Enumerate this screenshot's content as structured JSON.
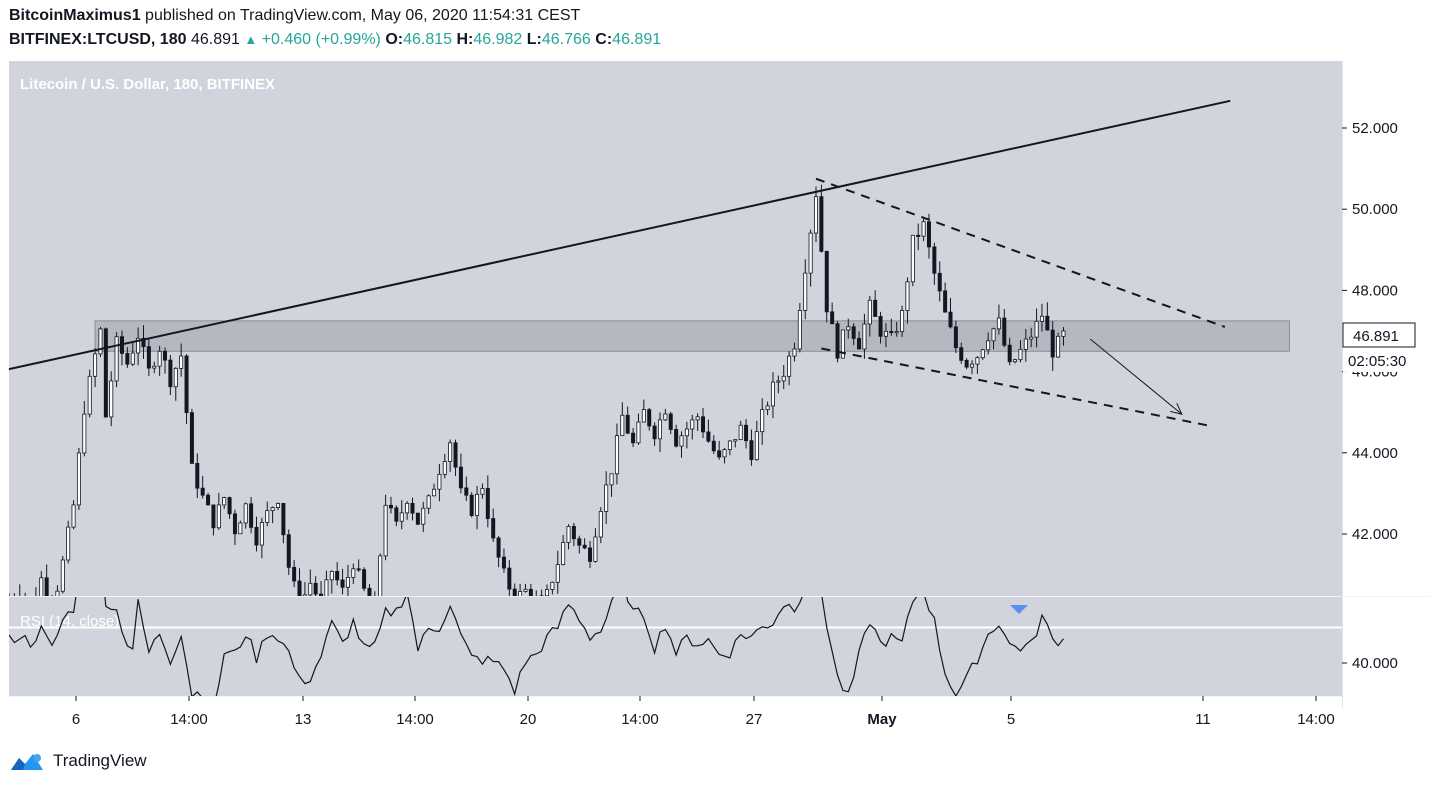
{
  "header": {
    "author": "BitcoinMaximus1",
    "published_text": "published on TradingView.com, May 06, 2020 11:54:31 CEST",
    "symbol": "BITFINEX:LTCUSD, 180",
    "last": "46.891",
    "change": "+0.460 (+0.99%)",
    "o_label": "O:",
    "o_value": "46.815",
    "h_label": "H:",
    "h_value": "46.982",
    "l_label": "L:",
    "l_value": "46.766",
    "c_label": "C:",
    "c_value": "46.891"
  },
  "footer": {
    "brand": "TradingView"
  },
  "chart_data": {
    "type": "candlestick",
    "title": "Litecoin / U.S. Dollar, 180, BITFINEX",
    "colors": {
      "background": "#d1d4dc",
      "candle": "#131722",
      "zone": "#b2b5be",
      "up": "#26a69a",
      "rsi_marker": "#5b8ff0"
    },
    "price_axis": {
      "ticks": [
        "52.000",
        "50.000",
        "48.000",
        "46.000",
        "44.000",
        "42.000",
        "40.000"
      ]
    },
    "time_axis": {
      "ticks": [
        "6",
        "14:00",
        "13",
        "14:00",
        "20",
        "14:00",
        "27",
        "May",
        "5",
        "11",
        "14:00"
      ]
    },
    "last_price_label": "46.891",
    "countdown_label": "02:05:30",
    "rsi": {
      "label": "RSI (14, close)"
    },
    "path": [
      [
        0,
        40.35
      ],
      [
        2,
        40.6
      ],
      [
        4,
        40.2
      ],
      [
        6,
        40.9
      ],
      [
        8,
        40.1
      ],
      [
        10,
        41.3
      ],
      [
        12,
        42.7
      ],
      [
        14,
        45.1
      ],
      [
        16,
        46.4
      ],
      [
        17,
        47.0
      ],
      [
        18,
        44.9
      ],
      [
        20,
        46.7
      ],
      [
        22,
        46.2
      ],
      [
        24,
        46.9
      ],
      [
        26,
        46.0
      ],
      [
        28,
        46.6
      ],
      [
        30,
        45.8
      ],
      [
        32,
        46.4
      ],
      [
        34,
        43.6
      ],
      [
        36,
        42.9
      ],
      [
        38,
        42.3
      ],
      [
        40,
        42.9
      ],
      [
        42,
        42.1
      ],
      [
        44,
        42.7
      ],
      [
        46,
        41.9
      ],
      [
        48,
        42.5
      ],
      [
        50,
        42.9
      ],
      [
        52,
        41.2
      ],
      [
        54,
        40.2
      ],
      [
        56,
        40.8
      ],
      [
        58,
        40.3
      ],
      [
        60,
        41.1
      ],
      [
        62,
        40.6
      ],
      [
        64,
        41.3
      ],
      [
        66,
        40.6
      ],
      [
        68,
        40.2
      ],
      [
        70,
        42.8
      ],
      [
        72,
        42.2
      ],
      [
        74,
        42.9
      ],
      [
        76,
        42.3
      ],
      [
        78,
        42.8
      ],
      [
        80,
        43.6
      ],
      [
        82,
        44.3
      ],
      [
        84,
        43.0
      ],
      [
        86,
        42.6
      ],
      [
        88,
        43.2
      ],
      [
        90,
        41.8
      ],
      [
        92,
        41.0
      ],
      [
        94,
        40.4
      ],
      [
        96,
        40.6
      ],
      [
        98,
        40.2
      ],
      [
        100,
        40.5
      ],
      [
        102,
        41.3
      ],
      [
        104,
        42.2
      ],
      [
        106,
        41.7
      ],
      [
        108,
        41.5
      ],
      [
        110,
        42.7
      ],
      [
        112,
        43.6
      ],
      [
        114,
        44.9
      ],
      [
        116,
        44.2
      ],
      [
        118,
        45.0
      ],
      [
        120,
        44.5
      ],
      [
        122,
        45.1
      ],
      [
        124,
        44.3
      ],
      [
        126,
        44.6
      ],
      [
        128,
        44.9
      ],
      [
        130,
        44.3
      ],
      [
        132,
        43.8
      ],
      [
        134,
        44.2
      ],
      [
        136,
        44.6
      ],
      [
        138,
        44.0
      ],
      [
        140,
        44.9
      ],
      [
        142,
        45.6
      ],
      [
        144,
        46.0
      ],
      [
        146,
        46.7
      ],
      [
        148,
        48.6
      ],
      [
        150,
        50.4
      ],
      [
        152,
        47.6
      ],
      [
        154,
        46.5
      ],
      [
        156,
        47.2
      ],
      [
        158,
        46.7
      ],
      [
        160,
        47.6
      ],
      [
        162,
        47.0
      ],
      [
        164,
        46.8
      ],
      [
        166,
        47.4
      ],
      [
        168,
        49.2
      ],
      [
        170,
        49.6
      ],
      [
        172,
        48.4
      ],
      [
        174,
        47.4
      ],
      [
        176,
        46.6
      ],
      [
        178,
        46.2
      ],
      [
        180,
        46.4
      ],
      [
        182,
        46.9
      ],
      [
        184,
        47.2
      ],
      [
        186,
        46.1
      ],
      [
        188,
        46.5
      ],
      [
        190,
        46.9
      ],
      [
        192,
        47.4
      ],
      [
        194,
        46.5
      ],
      [
        196,
        46.9
      ]
    ],
    "zone": {
      "x0": 16,
      "x1": 238,
      "y_high": 47.25,
      "y_low": 46.5
    },
    "rising_trendline": {
      "start": [
        0,
        46.06
      ],
      "end": [
        227,
        52.67
      ]
    },
    "descending_channel": {
      "upper": {
        "start": [
          150,
          50.75
        ],
        "end": [
          226,
          47.1
        ]
      },
      "lower": {
        "start": [
          151,
          46.57
        ],
        "end": [
          223,
          44.67
        ]
      }
    },
    "projection_arrow": {
      "start": [
        201,
        46.8
      ],
      "end": [
        218,
        44.95
      ]
    }
  }
}
